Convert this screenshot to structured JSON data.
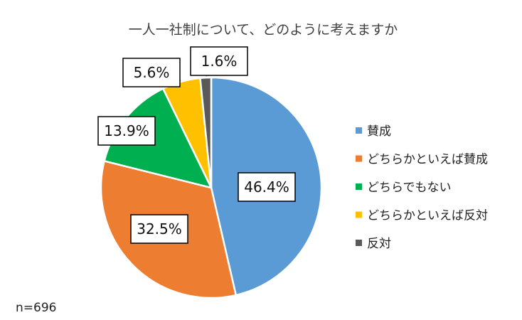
{
  "chart_data": {
    "type": "pie",
    "title": "一人一社制について、どのように考えますか",
    "note": "n=696",
    "start_angle_deg": 0,
    "direction": "clockwise",
    "legend_position": "right",
    "slices": [
      {
        "name": "賛成",
        "value": 46.4,
        "label": "46.4%",
        "color": "#5B9BD5"
      },
      {
        "name": "どちらかといえば賛成",
        "value": 32.5,
        "label": "32.5%",
        "color": "#ED7D31"
      },
      {
        "name": "どちらでもない",
        "value": 13.9,
        "label": "13.9%",
        "color": "#00B050"
      },
      {
        "name": "どちらかといえば反対",
        "value": 5.6,
        "label": "5.6%",
        "color": "#FFC000"
      },
      {
        "name": "反対",
        "value": 1.6,
        "label": "1.6%",
        "color": "#595959"
      }
    ]
  }
}
